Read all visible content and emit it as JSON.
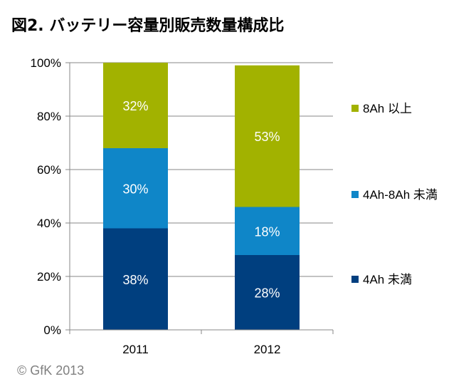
{
  "title": "図2. バッテリー容量別販売数量構成比",
  "copyright": "© GfK 2013",
  "chart_data": {
    "type": "bar",
    "stacked": true,
    "percent": true,
    "categories": [
      "2011",
      "2012"
    ],
    "series": [
      {
        "name": "4Ah 未満",
        "values": [
          38,
          28
        ],
        "labels": [
          "38%",
          "28%"
        ],
        "color": "#003f7f"
      },
      {
        "name": "4Ah-8Ah 未満",
        "values": [
          30,
          18
        ],
        "labels": [
          "30%",
          "18%"
        ],
        "color": "#0f86c8"
      },
      {
        "name": "8Ah 以上",
        "values": [
          32,
          53
        ],
        "labels": [
          "32%",
          "53%"
        ],
        "color": "#a2b200"
      }
    ],
    "ylim": [
      0,
      100
    ],
    "yticks": [
      "0%",
      "20%",
      "40%",
      "60%",
      "80%",
      "100%"
    ],
    "grid": true,
    "legend": "right"
  }
}
